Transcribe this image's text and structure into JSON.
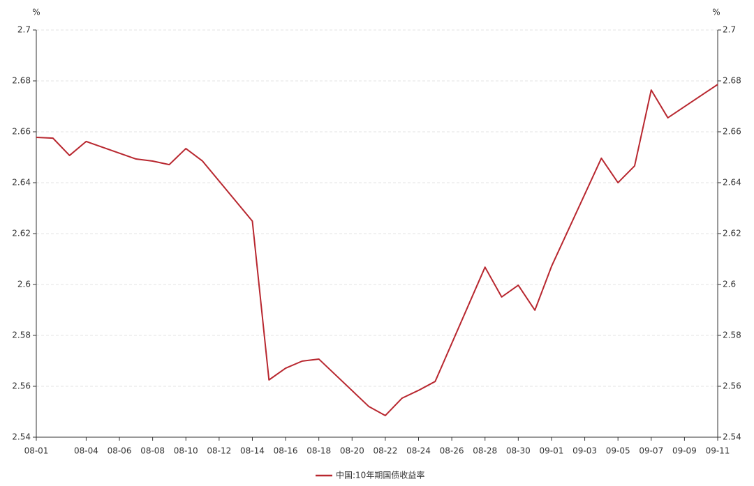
{
  "chart_data": {
    "type": "line",
    "y_label": "%",
    "y2_label": "%",
    "x": [
      "08-01",
      "08-02",
      "08-03",
      "08-04",
      "08-07",
      "08-08",
      "08-09",
      "08-10",
      "08-11",
      "08-14",
      "08-15",
      "08-16",
      "08-17",
      "08-18",
      "08-21",
      "08-22",
      "08-23",
      "08-24",
      "08-25",
      "08-28",
      "08-29",
      "08-30",
      "08-31",
      "09-01",
      "09-04",
      "09-05",
      "09-06",
      "09-07",
      "09-08",
      "09-11"
    ],
    "xlim": [
      "08-01",
      "09-11"
    ],
    "xticks": [
      "08-01",
      "08-04",
      "08-06",
      "08-08",
      "08-10",
      "08-12",
      "08-14",
      "08-16",
      "08-18",
      "08-20",
      "08-22",
      "08-24",
      "08-26",
      "08-28",
      "08-30",
      "09-01",
      "09-03",
      "09-05",
      "09-07",
      "09-09",
      "09-11"
    ],
    "series": [
      {
        "name": "中国:10年期国债收益率",
        "color": "#b8272f",
        "values": [
          2.6578,
          2.6575,
          2.6507,
          2.6562,
          2.6493,
          2.6485,
          2.6471,
          2.6534,
          2.6485,
          2.6249,
          2.5625,
          2.5671,
          2.5699,
          2.5707,
          2.5521,
          2.5485,
          2.5553,
          2.5584,
          2.5619,
          2.6068,
          2.5951,
          2.5997,
          2.5899,
          2.6071,
          2.6496,
          2.64,
          2.6466,
          2.6764,
          2.6655,
          2.6786
        ]
      }
    ],
    "ylim": [
      2.54,
      2.7
    ],
    "yticks": [
      2.54,
      2.56,
      2.58,
      2.6,
      2.62,
      2.64,
      2.66,
      2.68,
      2.7
    ],
    "y2lim": [
      2.54,
      2.7
    ],
    "y2ticks": [
      2.54,
      2.56,
      2.58,
      2.6,
      2.62,
      2.64,
      2.66,
      2.68,
      2.7
    ],
    "grid": true
  }
}
